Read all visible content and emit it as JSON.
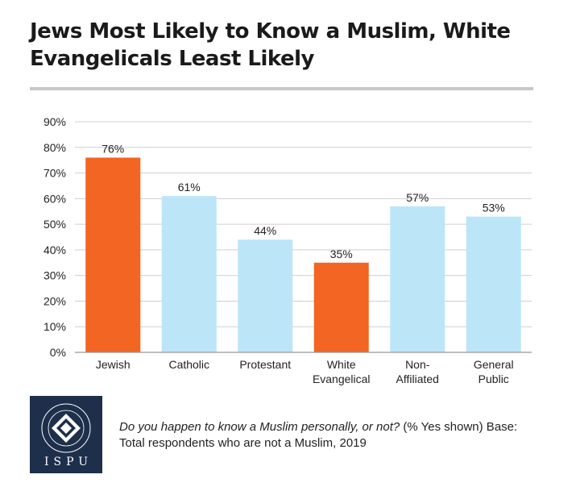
{
  "title": "Jews Most Likely to Know a Muslim, White Evangelicals Least Likely",
  "footnote": {
    "question": "Do you happen to know a Muslim personally, or not?",
    "detail": "(% Yes shown) Base: Total respondents who are not a Muslim, 2019"
  },
  "logo": {
    "letters": "ISPU",
    "ring_text": "INSTITUTE FOR SOCIAL POLICY AND UNDERSTANDING"
  },
  "colors": {
    "highlight": "#f26522",
    "normal": "#bde5f8",
    "grid": "#cfcfcf",
    "axis": "#999999",
    "logo_bg": "#1e2f4b"
  },
  "chart_data": {
    "type": "bar",
    "categories": [
      [
        "Jewish"
      ],
      [
        "Catholic"
      ],
      [
        "Protestant"
      ],
      [
        "White",
        "Evangelical"
      ],
      [
        "Non-",
        "Affiliated"
      ],
      [
        "General",
        "Public"
      ]
    ],
    "values": [
      76,
      61,
      44,
      35,
      57,
      53
    ],
    "value_labels": [
      "76%",
      "61%",
      "44%",
      "35%",
      "57%",
      "53%"
    ],
    "highlight": [
      true,
      false,
      false,
      true,
      false,
      false
    ],
    "ylim": [
      0,
      90
    ],
    "yticks": [
      0,
      10,
      20,
      30,
      40,
      50,
      60,
      70,
      80,
      90
    ],
    "ytick_labels": [
      "0%",
      "10%",
      "20%",
      "30%",
      "40%",
      "50%",
      "60%",
      "70%",
      "80%",
      "90%"
    ],
    "grid": true,
    "xlabel": "",
    "ylabel": ""
  }
}
